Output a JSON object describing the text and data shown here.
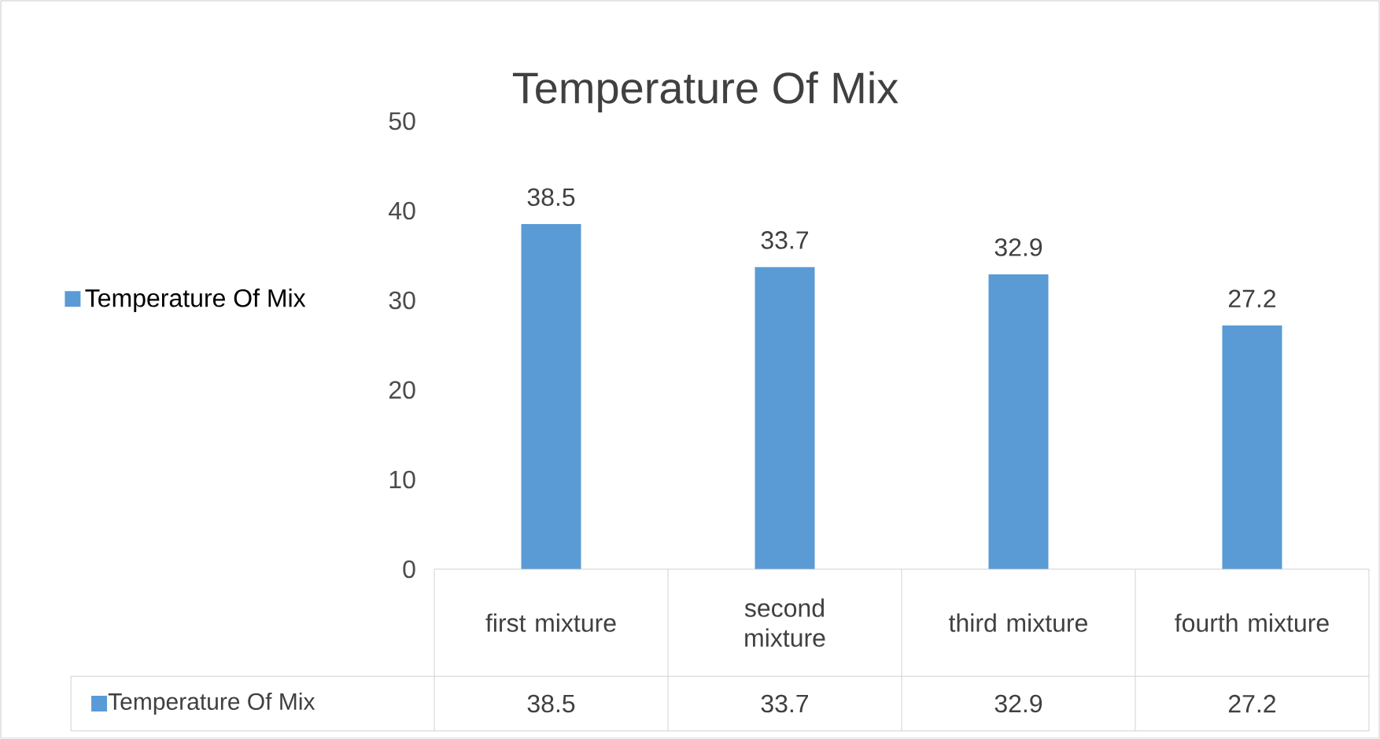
{
  "chart_data": {
    "type": "bar",
    "title": "Temperature Of Mix",
    "categories": [
      "first mixture",
      "second mixture",
      "third mixture",
      "fourth mixture"
    ],
    "series": [
      {
        "name": "Temperature Of Mix",
        "color": "#5b9bd5",
        "values": [
          38.5,
          33.7,
          32.9,
          27.2
        ],
        "value_labels": [
          "38.5",
          "33.7",
          "32.9",
          "27.2"
        ]
      }
    ],
    "ylim": [
      0,
      50
    ],
    "yticks": [
      0,
      10,
      20,
      30,
      40,
      50
    ],
    "grid": false,
    "legend": "left",
    "annotations": [
      "38.5",
      "33.7",
      "32.9",
      "27.2"
    ]
  }
}
